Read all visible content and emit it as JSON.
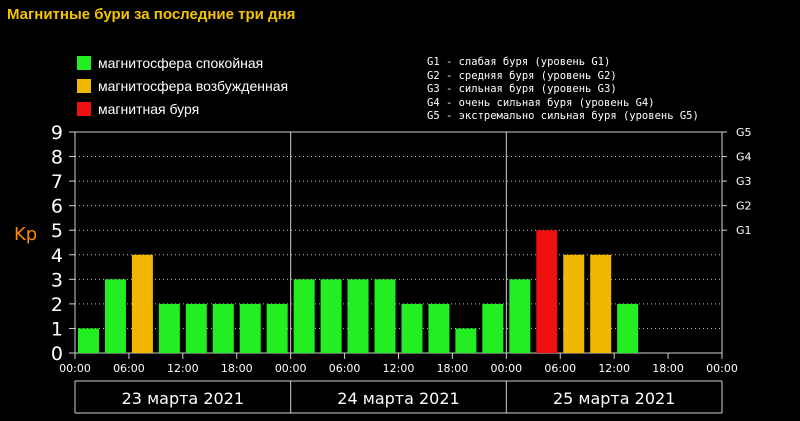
{
  "title": "Магнитные бури за последние три дня",
  "legend": [
    {
      "label": "магнитосфера спокойная",
      "color": "#22ee22"
    },
    {
      "label": "магнитосфера возбужденная",
      "color": "#f0b800"
    },
    {
      "label": "магнитная буря",
      "color": "#ee1111"
    }
  ],
  "g_legend": [
    "G1 - слабая буря (уровень G1)",
    "G2 - средняя буря (уровень G2)",
    "G3 - сильная буря (уровень G3)",
    "G4 - очень сильная буря (уровень G4)",
    "G5 - экстремально сильная буря (уровень G5)"
  ],
  "colors": {
    "background": "#000000",
    "axis_label": "#ff8800",
    "grid": "#bbbbbb"
  },
  "chart_data": {
    "type": "bar",
    "ylabel": "Kp",
    "ylim": [
      0,
      9
    ],
    "yticks": [
      "0",
      "1",
      "2",
      "3",
      "4",
      "5",
      "6",
      "7",
      "8",
      "9"
    ],
    "right_ticks": [
      {
        "kp": 5,
        "label": "G1"
      },
      {
        "kp": 6,
        "label": "G2"
      },
      {
        "kp": 7,
        "label": "G3"
      },
      {
        "kp": 8,
        "label": "G4"
      },
      {
        "kp": 9,
        "label": "G5"
      }
    ],
    "grid": "dotted",
    "days": [
      {
        "date": "23 марта 2021",
        "values": [
          1,
          3,
          4,
          2,
          2,
          2,
          2,
          2
        ],
        "status": [
          "quiet",
          "quiet",
          "active",
          "quiet",
          "quiet",
          "quiet",
          "quiet",
          "quiet"
        ]
      },
      {
        "date": "24 марта 2021",
        "values": [
          3,
          3,
          3,
          3,
          2,
          2,
          1,
          2
        ],
        "status": [
          "quiet",
          "quiet",
          "quiet",
          "quiet",
          "quiet",
          "quiet",
          "quiet",
          "quiet"
        ]
      },
      {
        "date": "25 марта 2021",
        "values": [
          3,
          5,
          4,
          4,
          2
        ],
        "status": [
          "quiet",
          "storm",
          "active",
          "active",
          "quiet"
        ]
      }
    ],
    "time_ticks": [
      "00:00",
      "06:00",
      "12:00",
      "18:00",
      "00:00",
      "06:00",
      "12:00",
      "18:00",
      "00:00",
      "06:00",
      "12:00",
      "18:00",
      "00:00"
    ]
  }
}
